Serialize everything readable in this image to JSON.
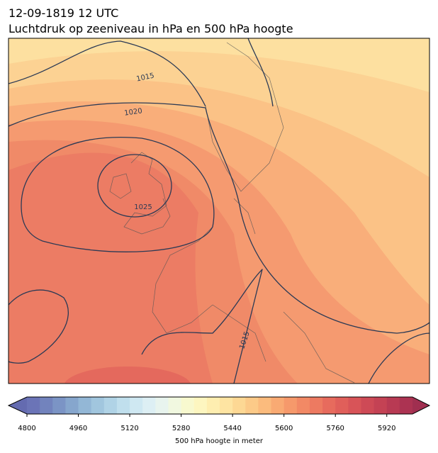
{
  "map": {
    "title_lines": [
      "12-09-1819 12 UTC",
      "Luchtdruk op zeeniveau in hPa en 500 hPa hoogte"
    ],
    "contour_labels": [
      "1015",
      "1020",
      "1025",
      "1015"
    ]
  },
  "chart_data": {
    "type": "colorbar",
    "label": "500 hPa hoogte in meter",
    "xlim": [
      4800,
      6000
    ],
    "xticks": [
      4800,
      4960,
      5120,
      5280,
      5440,
      5600,
      5760,
      5920
    ],
    "colors": [
      "#6b74b7",
      "#7283bd",
      "#7b94c5",
      "#86a6cd",
      "#93b7d6",
      "#a1c6de",
      "#b0d3e6",
      "#c0dfed",
      "#cfe8f2",
      "#ddeff4",
      "#e8f4ee",
      "#f1f8e0",
      "#f8f9cf",
      "#fdf6c0",
      "#feeeb0",
      "#fee4a2",
      "#fdd894",
      "#fcca88",
      "#fbbb7d",
      "#f9aa73",
      "#f6996b",
      "#f28965",
      "#ed7a61",
      "#e76b5d",
      "#e05f5a",
      "#d85458",
      "#ce4a56",
      "#c44254",
      "#b83a53",
      "#ac3352"
    ],
    "under_color": "#646bb0",
    "over_color": "#a02f50"
  }
}
